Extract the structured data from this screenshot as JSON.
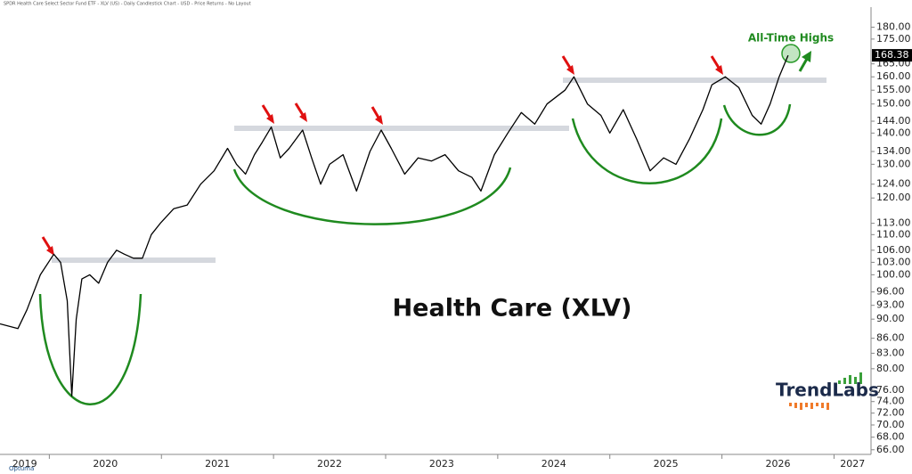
{
  "chart_data": {
    "type": "line",
    "header": "SPDR Health Care Select Sector Fund ETF - XLV (US) - Daily Candlestick Chart - USD - Price Returns - No Layout",
    "title": "Health Care (XLV)",
    "annotation": "All-Time Highs",
    "logo": "TrendLabs",
    "source": "Optuma",
    "color": "#000000",
    "log_scale": true,
    "x": [
      2019.56,
      2019.72,
      2019.8,
      2019.92,
      2020.04,
      2020.1,
      2020.16,
      2020.2,
      2020.24,
      2020.29,
      2020.36,
      2020.44,
      2020.52,
      2020.6,
      2020.67,
      2020.75,
      2020.83,
      2020.91,
      2020.99,
      2021.11,
      2021.23,
      2021.35,
      2021.47,
      2021.59,
      2021.67,
      2021.75,
      2021.83,
      2021.9,
      2021.98,
      2022.06,
      2022.14,
      2022.26,
      2022.34,
      2022.42,
      2022.5,
      2022.62,
      2022.74,
      2022.86,
      2022.96,
      2023.05,
      2023.17,
      2023.29,
      2023.41,
      2023.53,
      2023.65,
      2023.77,
      2023.85,
      2023.97,
      2024.09,
      2024.21,
      2024.33,
      2024.44,
      2024.6,
      2024.68,
      2024.8,
      2024.92,
      2025.0,
      2025.12,
      2025.24,
      2025.36,
      2025.48,
      2025.59,
      2025.71,
      2025.83,
      2025.91,
      2026.03,
      2026.15,
      2026.27,
      2026.35,
      2026.43,
      2026.51,
      2026.59
    ],
    "values": [
      89,
      88,
      92,
      100,
      105,
      103,
      94,
      75,
      90,
      99,
      100,
      98,
      103,
      106,
      105,
      104,
      104,
      110,
      113,
      117,
      118,
      124,
      128,
      135,
      130,
      127,
      133,
      137,
      142,
      132,
      135,
      141,
      132,
      124,
      130,
      133,
      122,
      134,
      141,
      135,
      127,
      132,
      131,
      133,
      128,
      126,
      122,
      133,
      140,
      147,
      143,
      150,
      155,
      160,
      150,
      146,
      140,
      148,
      138,
      128,
      132,
      130,
      138,
      148,
      157,
      160,
      156,
      146,
      143,
      150,
      160,
      168.38
    ],
    "xlim": [
      2019.56,
      2027.33
    ],
    "xticks": [
      2019,
      2020,
      2021,
      2022,
      2023,
      2024,
      2025,
      2026,
      2027
    ],
    "ylim": [
      65,
      188
    ],
    "yticks": [
      {
        "value": 180,
        "label": "180.00"
      },
      {
        "value": 175,
        "label": "175.00"
      },
      {
        "value": 165,
        "label": "165.00"
      },
      {
        "value": 160,
        "label": "160.00"
      },
      {
        "value": 155,
        "label": "155.00"
      },
      {
        "value": 150,
        "label": "150.00"
      },
      {
        "value": 144,
        "label": "144.00"
      },
      {
        "value": 140,
        "label": "140.00"
      },
      {
        "value": 134,
        "label": "134.00"
      },
      {
        "value": 130,
        "label": "130.00"
      },
      {
        "value": 124,
        "label": "124.00"
      },
      {
        "value": 120,
        "label": "120.00"
      },
      {
        "value": 113,
        "label": "113.00"
      },
      {
        "value": 110,
        "label": "110.00"
      },
      {
        "value": 106,
        "label": "106.00"
      },
      {
        "value": 103,
        "label": "103.00"
      },
      {
        "value": 100,
        "label": "100.00"
      },
      {
        "value": 96,
        "label": "96.00"
      },
      {
        "value": 93,
        "label": "93.00"
      },
      {
        "value": 90,
        "label": "90.00"
      },
      {
        "value": 86,
        "label": "86.00"
      },
      {
        "value": 83,
        "label": "83.00"
      },
      {
        "value": 80,
        "label": "80.00"
      },
      {
        "value": 76,
        "label": "76.00"
      },
      {
        "value": 74,
        "label": "74.00"
      },
      {
        "value": 72,
        "label": "72.00"
      },
      {
        "value": 70,
        "label": "70.00"
      },
      {
        "value": 68,
        "label": "68.00"
      },
      {
        "value": 66,
        "label": "66.00"
      }
    ]
  }
}
